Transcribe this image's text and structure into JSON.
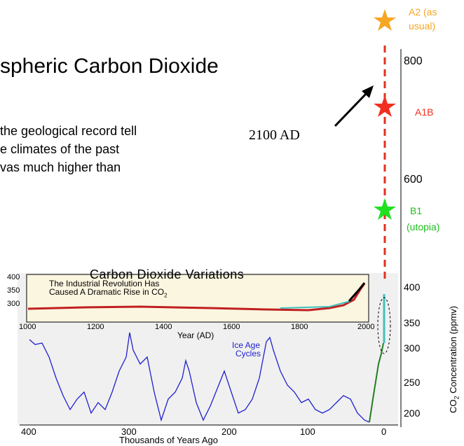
{
  "slide": {
    "title": "spheric Carbon Dioxide",
    "body": [
      "the geological record tell",
      "e climates of the past",
      "vas much higher than"
    ],
    "annotation": "2100 AD"
  },
  "scenarios": [
    {
      "label": [
        "A2 (as",
        "usual)"
      ]
    },
    {
      "label": [
        "A1B"
      ]
    },
    {
      "label": [
        "B1",
        "(utopia)"
      ]
    }
  ],
  "scale_ticks": [
    "800",
    "600",
    "400",
    "350",
    "300",
    "250",
    "200"
  ],
  "figure": {
    "title": "Carbon Dioxide Variations",
    "inset_title": [
      "The Industrial Revolution Has",
      "Caused A Dramatic Rise in CO",
      "2"
    ],
    "inset_yticks": [
      "400",
      "350",
      "300"
    ],
    "inset_xticks": [
      "1000",
      "1200",
      "1400",
      "1600",
      "1800",
      "2000"
    ],
    "inset_xlabel": "Year (AD)",
    "curve_label": [
      "Ice Age",
      "Cycles"
    ],
    "xticks": [
      "400",
      "300",
      "200",
      "100",
      "0"
    ],
    "xlabel": "Thousands of Years Ago",
    "ylabel": [
      "CO",
      "2",
      " Concentration (ppmv)"
    ]
  }
}
